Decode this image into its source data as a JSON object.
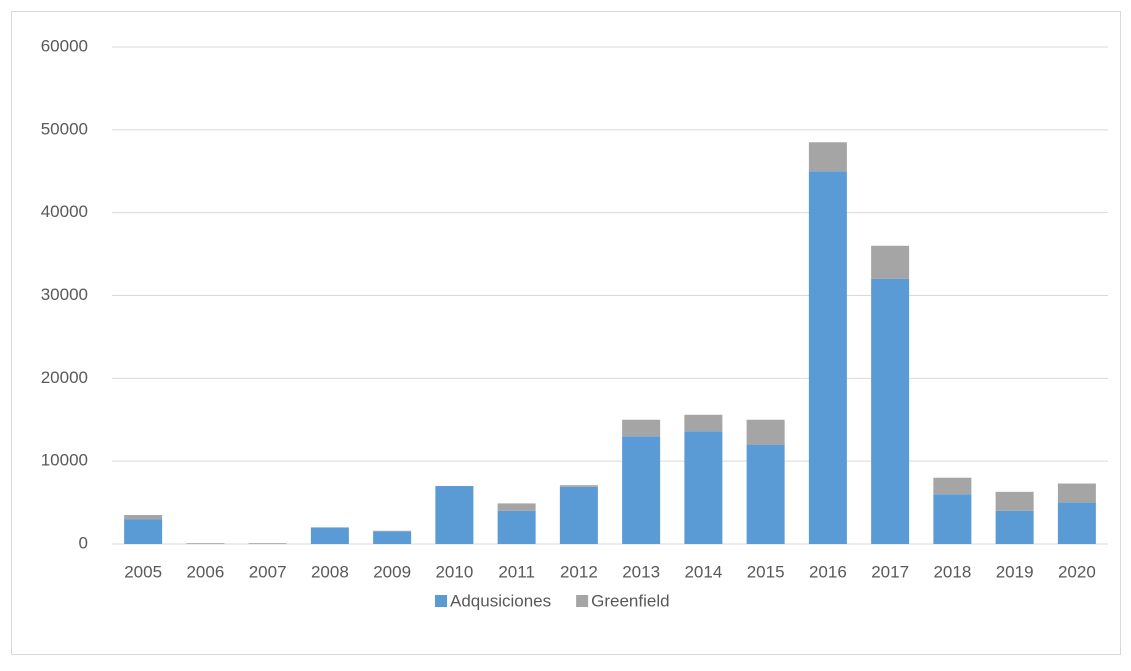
{
  "chart_data": {
    "type": "stacked_bar",
    "categories": [
      "2005",
      "2006",
      "2007",
      "2008",
      "2009",
      "2010",
      "2011",
      "2012",
      "2013",
      "2014",
      "2015",
      "2016",
      "2017",
      "2018",
      "2019",
      "2020"
    ],
    "series": [
      {
        "name": "Adqusiciones",
        "color": "#5b9bd5",
        "values": [
          3000,
          0,
          0,
          2000,
          1500,
          7000,
          4000,
          6900,
          13000,
          13600,
          12000,
          45000,
          32000,
          6000,
          4000,
          5000
        ]
      },
      {
        "name": "Greenfield",
        "color": "#a5a5a5",
        "values": [
          500,
          100,
          100,
          0,
          100,
          0,
          900,
          200,
          2000,
          2000,
          3000,
          3500,
          4000,
          2000,
          2300,
          2300
        ]
      }
    ],
    "ylim": [
      0,
      60000
    ],
    "yticks": [
      0,
      10000,
      20000,
      30000,
      40000,
      50000,
      60000
    ],
    "grid": true,
    "legend": "bottom"
  }
}
